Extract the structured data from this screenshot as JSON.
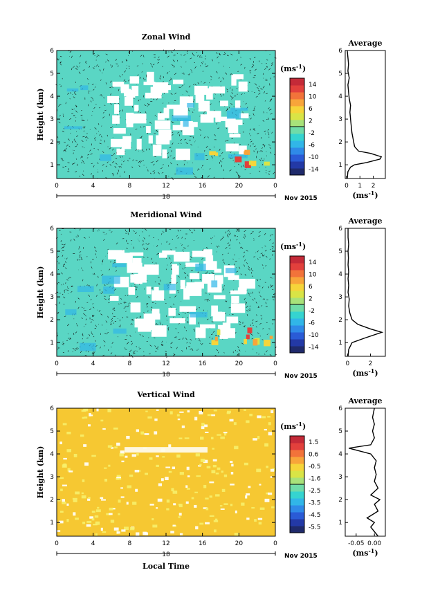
{
  "panels": [
    {
      "id": "zonal",
      "title": "Zonal Wind",
      "ylabel": "Height (km)",
      "yticks": [
        "1",
        "2",
        "3",
        "4",
        "5",
        "6"
      ],
      "xticks": [
        "0",
        "4",
        "8",
        "12",
        "16",
        "20",
        "0"
      ],
      "date_label": "18",
      "month_label": "Nov 2015",
      "colorbar_unit": "(ms",
      "colorbar_unit_sup": "-1",
      "colorbar_unit_close": ")",
      "colorbar_ticks": [
        "14",
        "10",
        "6",
        "2",
        "-2",
        "-6",
        "-10",
        "-14"
      ],
      "colorbar_colors": [
        "#1f2a6b",
        "#2339a6",
        "#2a5bd6",
        "#2f8ae8",
        "#31b6e8",
        "#35d4d0",
        "#6fdca8",
        "#a8e27a",
        "#d9e446",
        "#f6d53a",
        "#f8a53a",
        "#f2733a",
        "#e2403c",
        "#c42a38"
      ],
      "avg_title": "Average",
      "avg_xticks": [
        "0",
        "1",
        "2"
      ],
      "avg_yticks": [
        "1",
        "2",
        "3",
        "4",
        "5",
        "6"
      ],
      "avg_xlabel": "(ms",
      "avg_xlabel_sup": "-1",
      "avg_xlabel_close": ")",
      "field_color": "#5ad6c4",
      "profile": [
        [
          0.05,
          0.4
        ],
        [
          0.1,
          0.7
        ],
        [
          0.3,
          0.9
        ],
        [
          0.6,
          1.0
        ],
        [
          1.5,
          1.1
        ],
        [
          2.5,
          1.25
        ],
        [
          2.6,
          1.35
        ],
        [
          1.8,
          1.5
        ],
        [
          0.9,
          1.6
        ],
        [
          0.6,
          1.8
        ],
        [
          0.5,
          2.1
        ],
        [
          0.4,
          2.4
        ],
        [
          0.35,
          2.7
        ],
        [
          0.3,
          3.0
        ],
        [
          0.25,
          3.3
        ],
        [
          0.3,
          3.6
        ],
        [
          0.2,
          3.9
        ],
        [
          0.15,
          4.2
        ],
        [
          0.1,
          4.5
        ],
        [
          0.2,
          4.8
        ],
        [
          0.1,
          5.1
        ],
        [
          0.15,
          5.4
        ],
        [
          0.1,
          5.7
        ],
        [
          0.05,
          6.0
        ]
      ],
      "avg_xlim": [
        -0.1,
        2.9
      ],
      "ylim": [
        0.4,
        6.0
      ]
    },
    {
      "id": "meridional",
      "title": "Meridional Wind",
      "ylabel": "Height (km)",
      "yticks": [
        "1",
        "2",
        "3",
        "4",
        "5",
        "6"
      ],
      "xticks": [
        "0",
        "4",
        "8",
        "12",
        "16",
        "20",
        "0"
      ],
      "date_label": "18",
      "month_label": "Nov 2015",
      "colorbar_unit": "(ms",
      "colorbar_unit_sup": "-1",
      "colorbar_unit_close": ")",
      "colorbar_ticks": [
        "14",
        "10",
        "6",
        "2",
        "-2",
        "-6",
        "-10",
        "-14"
      ],
      "colorbar_colors": [
        "#1f2a6b",
        "#2339a6",
        "#2a5bd6",
        "#2f8ae8",
        "#31b6e8",
        "#35d4d0",
        "#6fdca8",
        "#a8e27a",
        "#d9e446",
        "#f6d53a",
        "#f8a53a",
        "#f2733a",
        "#e2403c",
        "#c42a38"
      ],
      "avg_title": "Average",
      "avg_xticks": [
        "0",
        "2"
      ],
      "avg_yticks": [
        "1",
        "2",
        "3",
        "4",
        "5",
        "6"
      ],
      "avg_xlabel": "(ms",
      "avg_xlabel_sup": "-1",
      "avg_xlabel_close": ")",
      "field_color": "#5ad6c4",
      "profile": [
        [
          0.05,
          0.4
        ],
        [
          0.1,
          0.7
        ],
        [
          0.4,
          1.0
        ],
        [
          1.5,
          1.2
        ],
        [
          3.0,
          1.45
        ],
        [
          2.0,
          1.6
        ],
        [
          0.9,
          1.8
        ],
        [
          0.4,
          2.0
        ],
        [
          0.2,
          2.3
        ],
        [
          0.1,
          2.6
        ],
        [
          0.15,
          2.9
        ],
        [
          0.05,
          3.2
        ],
        [
          0.1,
          3.5
        ],
        [
          0.05,
          3.8
        ],
        [
          0.1,
          4.1
        ],
        [
          0.05,
          4.4
        ],
        [
          0.08,
          4.7
        ],
        [
          0.05,
          5.0
        ],
        [
          0.1,
          5.3
        ],
        [
          0.05,
          5.6
        ],
        [
          0.05,
          6.0
        ]
      ],
      "avg_xlim": [
        -0.2,
        3.3
      ],
      "ylim": [
        0.4,
        6.0
      ]
    },
    {
      "id": "vertical",
      "title": "Vertical Wind",
      "ylabel": "Height (km)",
      "yticks": [
        "1",
        "2",
        "3",
        "4",
        "5",
        "6"
      ],
      "xticks": [
        "0",
        "4",
        "8",
        "12",
        "16",
        "20",
        "0"
      ],
      "date_label": "18",
      "month_label": "Nov 2015",
      "xlabel": "Local Time",
      "colorbar_unit": "(ms",
      "colorbar_unit_sup": "-1",
      "colorbar_unit_close": ")",
      "colorbar_ticks": [
        "1.5",
        "0.6",
        "-0.5",
        "-1.6",
        "-2.5",
        "-3.5",
        "-4.5",
        "-5.5"
      ],
      "colorbar_colors": [
        "#1f2a6b",
        "#2339a6",
        "#2a5bd6",
        "#2f8ae8",
        "#31b6e8",
        "#35d4d0",
        "#6fdca8",
        "#a8e27a",
        "#d9e446",
        "#f6d53a",
        "#f8a53a",
        "#f2733a",
        "#e2403c",
        "#c42a38"
      ],
      "avg_title": "Average",
      "avg_xticks": [
        "-0.05",
        "0.00"
      ],
      "avg_yticks": [
        "1",
        "2",
        "3",
        "4",
        "5",
        "6"
      ],
      "avg_xlabel": "(ms",
      "avg_xlabel_sup": "-1",
      "avg_xlabel_close": ")",
      "field_color": "#f6c832",
      "profile": [
        [
          0.01,
          0.4
        ],
        [
          -0.01,
          0.8
        ],
        [
          0.0,
          1.0
        ],
        [
          -0.02,
          1.2
        ],
        [
          0.01,
          1.5
        ],
        [
          0.0,
          1.8
        ],
        [
          0.015,
          2.0
        ],
        [
          -0.01,
          2.2
        ],
        [
          0.01,
          2.5
        ],
        [
          0.0,
          2.8
        ],
        [
          0.005,
          3.1
        ],
        [
          0.0,
          3.4
        ],
        [
          0.005,
          3.7
        ],
        [
          -0.01,
          4.0
        ],
        [
          -0.07,
          4.25
        ],
        [
          -0.01,
          4.4
        ],
        [
          0.0,
          4.7
        ],
        [
          -0.005,
          5.0
        ],
        [
          0.0,
          5.3
        ],
        [
          -0.005,
          5.6
        ],
        [
          0.0,
          6.0
        ]
      ],
      "avg_xlim": [
        -0.08,
        0.03
      ],
      "ylim": [
        0.4,
        6.0
      ]
    }
  ],
  "chart_data": [
    {
      "type": "heatmap",
      "title": "Zonal Wind",
      "xlabel": "",
      "ylabel": "Height (km)",
      "x_ticks": [
        "0",
        "4",
        "8",
        "12",
        "16",
        "20",
        "0"
      ],
      "y_ticks": [
        "1",
        "2",
        "3",
        "4",
        "5",
        "6"
      ],
      "colorbar_range": [
        -14,
        14
      ],
      "unit": "ms-1"
    },
    {
      "type": "line",
      "title": "Average",
      "xlabel": "(ms-1)",
      "ylabel": "",
      "x_ticks": [
        "0",
        "1",
        "2"
      ],
      "y_ticks": [
        "1",
        "2",
        "3",
        "4",
        "5",
        "6"
      ],
      "series": [
        {
          "x": [
            0.05,
            0.1,
            0.3,
            0.6,
            1.5,
            2.5,
            2.6,
            1.8,
            0.9,
            0.6,
            0.5,
            0.4,
            0.35,
            0.3,
            0.25,
            0.3,
            0.2,
            0.15,
            0.1,
            0.2,
            0.1,
            0.15,
            0.1,
            0.05
          ],
          "y": [
            0.4,
            0.7,
            0.9,
            1.0,
            1.1,
            1.25,
            1.35,
            1.5,
            1.6,
            1.8,
            2.1,
            2.4,
            2.7,
            3.0,
            3.3,
            3.6,
            3.9,
            4.2,
            4.5,
            4.8,
            5.1,
            5.4,
            5.7,
            6.0
          ]
        }
      ]
    },
    {
      "type": "heatmap",
      "title": "Meridional Wind",
      "xlabel": "",
      "ylabel": "Height (km)",
      "x_ticks": [
        "0",
        "4",
        "8",
        "12",
        "16",
        "20",
        "0"
      ],
      "y_ticks": [
        "1",
        "2",
        "3",
        "4",
        "5",
        "6"
      ],
      "colorbar_range": [
        -14,
        14
      ],
      "unit": "ms-1"
    },
    {
      "type": "line",
      "title": "Average",
      "xlabel": "(ms-1)",
      "ylabel": "",
      "x_ticks": [
        "0",
        "2"
      ],
      "y_ticks": [
        "1",
        "2",
        "3",
        "4",
        "5",
        "6"
      ],
      "series": [
        {
          "x": [
            0.05,
            0.1,
            0.4,
            1.5,
            3.0,
            2.0,
            0.9,
            0.4,
            0.2,
            0.1,
            0.15,
            0.05,
            0.1,
            0.05,
            0.1,
            0.05,
            0.08,
            0.05,
            0.1,
            0.05,
            0.05
          ],
          "y": [
            0.4,
            0.7,
            1.0,
            1.2,
            1.45,
            1.6,
            1.8,
            2.0,
            2.3,
            2.6,
            2.9,
            3.2,
            3.5,
            3.8,
            4.1,
            4.4,
            4.7,
            5.0,
            5.3,
            5.6,
            6.0
          ]
        }
      ]
    },
    {
      "type": "heatmap",
      "title": "Vertical Wind",
      "xlabel": "Local Time",
      "ylabel": "Height (km)",
      "x_ticks": [
        "0",
        "4",
        "8",
        "12",
        "16",
        "20",
        "0"
      ],
      "y_ticks": [
        "1",
        "2",
        "3",
        "4",
        "5",
        "6"
      ],
      "colorbar_range": [
        -5.5,
        1.5
      ],
      "unit": "ms-1"
    },
    {
      "type": "line",
      "title": "Average",
      "xlabel": "(ms-1)",
      "ylabel": "",
      "x_ticks": [
        "-0.05",
        "0.00"
      ],
      "y_ticks": [
        "1",
        "2",
        "3",
        "4",
        "5",
        "6"
      ],
      "series": [
        {
          "x": [
            0.01,
            -0.01,
            0.0,
            -0.02,
            0.01,
            0.0,
            0.015,
            -0.01,
            0.01,
            0.0,
            0.005,
            0.0,
            0.005,
            -0.01,
            -0.07,
            -0.01,
            0.0,
            -0.005,
            0.0,
            -0.005,
            0.0
          ],
          "y": [
            0.4,
            0.8,
            1.0,
            1.2,
            1.5,
            1.8,
            2.0,
            2.2,
            2.5,
            2.8,
            3.1,
            3.4,
            3.7,
            4.0,
            4.25,
            4.4,
            4.7,
            5.0,
            5.3,
            5.6,
            6.0
          ]
        }
      ]
    }
  ]
}
